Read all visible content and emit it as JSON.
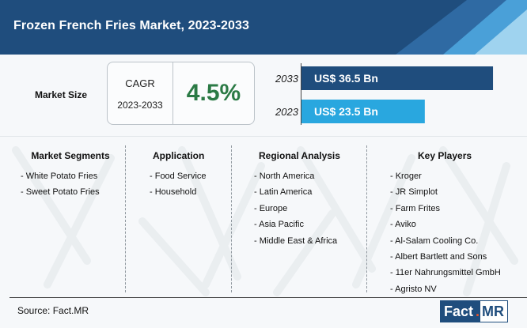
{
  "header": {
    "title": "Frozen French Fries Market, 2023-2033"
  },
  "market_size": {
    "label": "Market Size"
  },
  "cagr": {
    "label": "CAGR",
    "period": "2023-2033",
    "value": "4.5%"
  },
  "chart_data": {
    "type": "bar",
    "orientation": "horizontal",
    "categories": [
      "2033",
      "2023"
    ],
    "values": [
      36.5,
      23.5
    ],
    "value_labels": [
      "US$ 36.5 Bn",
      "US$ 23.5 Bn"
    ],
    "unit": "US$ Bn",
    "xlim": [
      0,
      37.7
    ],
    "colors": [
      "#1f4d7d",
      "#29a7df"
    ]
  },
  "columns": [
    {
      "heading": "Market Segments",
      "items": [
        "- White Potato Fries",
        "- Sweet Potato Fries"
      ]
    },
    {
      "heading": "Application",
      "items": [
        "- Food Service",
        "- Household"
      ]
    },
    {
      "heading": "Regional Analysis",
      "items": [
        "- North America",
        "- Latin America",
        "- Europe",
        "- Asia Pacific",
        "- Middle East & Africa"
      ]
    },
    {
      "heading": "Key Players",
      "items": [
        "- Kroger",
        "- JR Simplot",
        "- Farm Frites",
        "- Aviko",
        "- Al-Salam Cooling Co.",
        "- Albert Bartlett and Sons",
        "- 11er Nahrungsmittel GmbH",
        "- Agristo NV"
      ]
    }
  ],
  "footer": {
    "source": "Source: Fact.MR",
    "logo_left": "Fact",
    "logo_dot": ".",
    "logo_right": "MR"
  },
  "colors": {
    "navy": "#1f4d7d",
    "sky": "#29a7df",
    "green": "#2b7a45",
    "orange": "#e8542c"
  }
}
